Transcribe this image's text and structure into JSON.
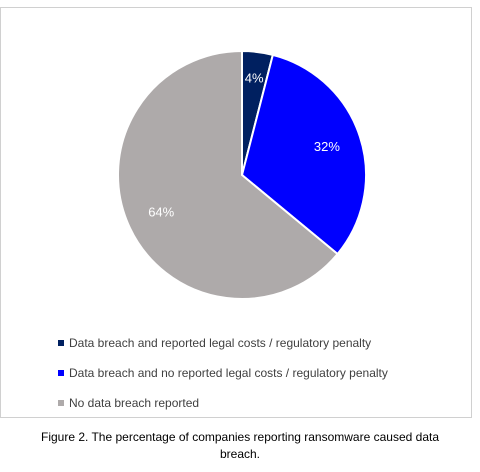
{
  "chart_data": {
    "type": "pie",
    "slices": [
      {
        "label": "Data breach and reported legal costs / regulatory penalty",
        "value": 4,
        "display": "4%",
        "color": "#002060"
      },
      {
        "label": "Data breach and no reported legal costs / regulatory penalty",
        "value": 32,
        "display": "32%",
        "color": "#0000ff"
      },
      {
        "label": "No data breach reported",
        "value": 64,
        "display": "64%",
        "color": "#aeaaaa"
      }
    ],
    "legend_position": "bottom-left",
    "start_angle": "12 o'clock",
    "direction": "clockwise"
  },
  "caption": {
    "line1": "Figure 2. The percentage of companies reporting ransomware caused data",
    "line2": "breach."
  }
}
